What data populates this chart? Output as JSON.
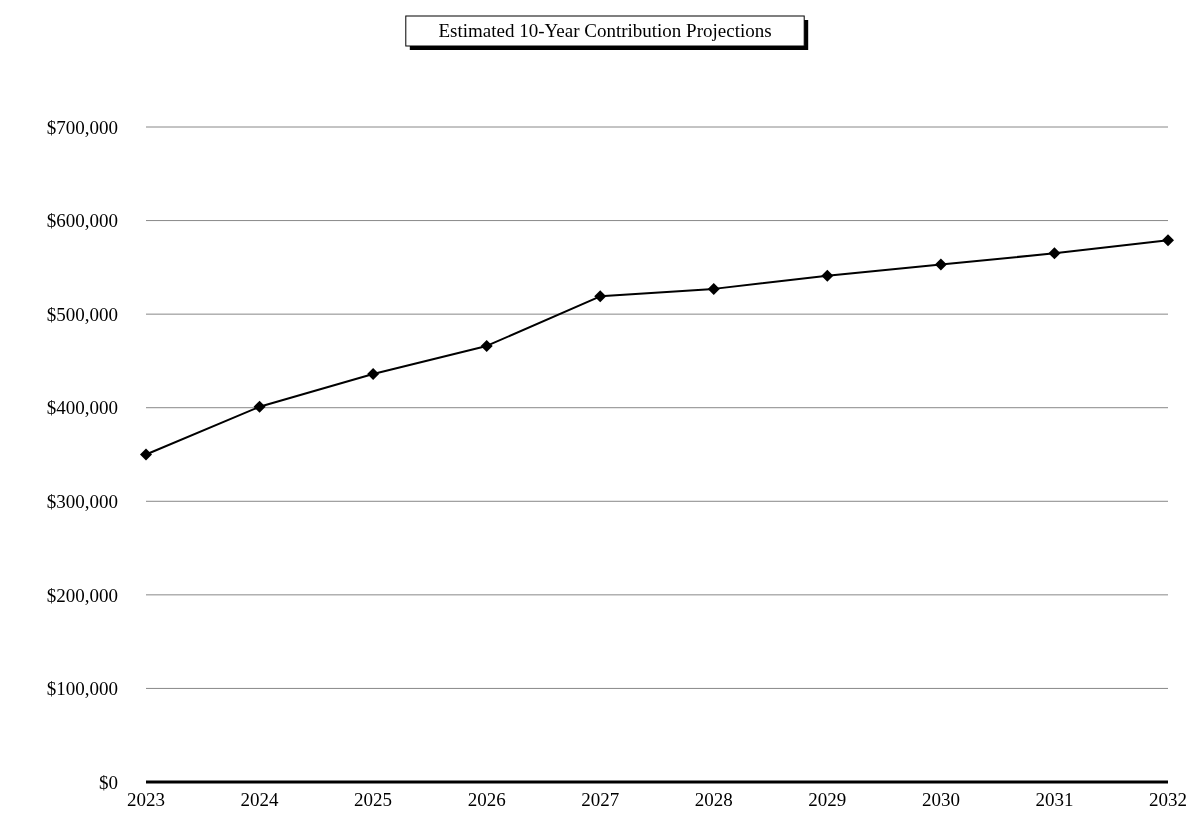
{
  "chart_data": {
    "type": "line",
    "title": "Estimated 10-Year Contribution Projections",
    "categories": [
      "2023",
      "2024",
      "2025",
      "2026",
      "2027",
      "2028",
      "2029",
      "2030",
      "2031",
      "2032"
    ],
    "series": [
      {
        "color": "#000000",
        "values": [
          350000,
          401000,
          436000,
          466000,
          519000,
          527000,
          541000,
          553000,
          565000,
          579000
        ]
      }
    ],
    "ylim": [
      0,
      700000
    ],
    "yticks": [
      {
        "value": 0,
        "label": "$0"
      },
      {
        "value": 100000,
        "label": "$100,000"
      },
      {
        "value": 200000,
        "label": "$200,000"
      },
      {
        "value": 300000,
        "label": "$300,000"
      },
      {
        "value": 400000,
        "label": "$400,000"
      },
      {
        "value": 500000,
        "label": "$500,000"
      },
      {
        "value": 600000,
        "label": "$600,000"
      },
      {
        "value": 700000,
        "label": "$700,000"
      }
    ],
    "grid": "y",
    "marker": "diamond",
    "line_style": "solid"
  }
}
